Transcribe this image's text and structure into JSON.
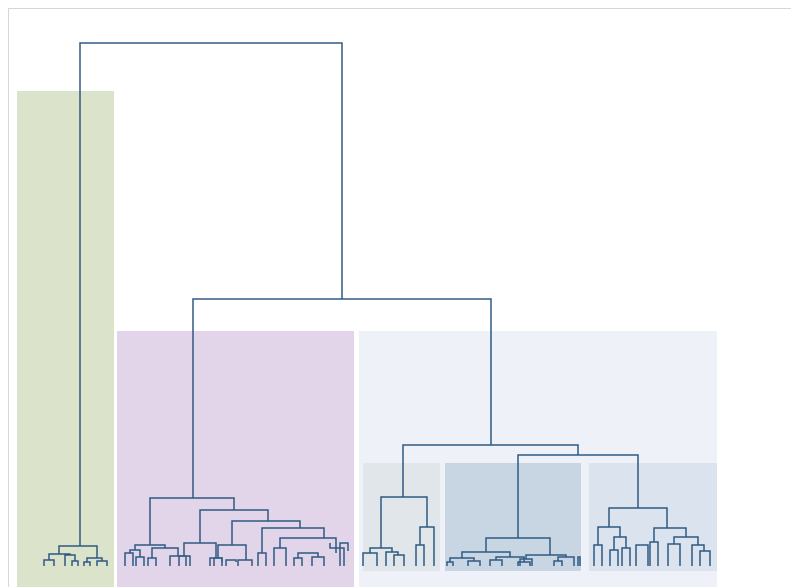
{
  "chart_data": {
    "type": "dendrogram",
    "title": "",
    "orientation": "top-down",
    "leaf_labels_shown": false,
    "cluster_tree": {
      "children": [
        {
          "cluster": "green-group"
        },
        {
          "children": [
            {
              "cluster": "purple-group"
            },
            {
              "cluster": "blue-group",
              "children": [
                {
                  "cluster": "blue-sub-gray"
                },
                {
                  "children": [
                    {
                      "cluster": "blue-sub-dark"
                    },
                    {
                      "cluster": "blue-sub-light"
                    }
                  ]
                }
              ]
            }
          ]
        }
      ]
    },
    "colors": {
      "link": "#2e5a82",
      "green_group": "#dbe3cb",
      "purple_group": "#e2d5ea",
      "blue_group": "#eef2f8",
      "blue_sub_gray": "#e1e6ea",
      "blue_sub_dark": "#c8d6e4",
      "blue_sub_light": "#dbe3ef"
    }
  }
}
